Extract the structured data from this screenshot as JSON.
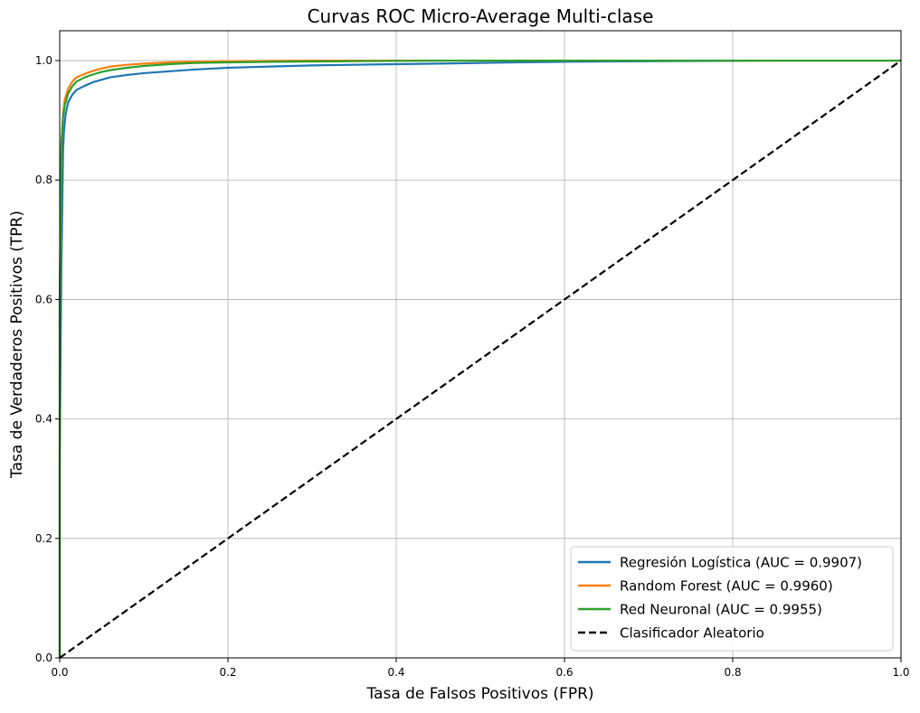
{
  "chart_data": {
    "type": "line",
    "title": "Curvas ROC Micro-Average Multi-clase",
    "xlabel": "Tasa de Falsos Positivos (FPR)",
    "ylabel": "Tasa de Verdaderos Positivos (TPR)",
    "xlim": [
      0,
      1
    ],
    "ylim": [
      0,
      1.05
    ],
    "xticks": [
      0.0,
      0.2,
      0.4,
      0.6,
      0.8,
      1.0
    ],
    "yticks": [
      0.0,
      0.2,
      0.4,
      0.6,
      0.8,
      1.0
    ],
    "xtick_labels": [
      "0.0",
      "0.2",
      "0.4",
      "0.6",
      "0.8",
      "1.0"
    ],
    "ytick_labels": [
      "0.0",
      "0.2",
      "0.4",
      "0.6",
      "0.8",
      "1.0"
    ],
    "grid": true,
    "legend_position": "lower-right",
    "series": [
      {
        "name": "Regresión Logística (AUC = 0.9907)",
        "color": "#1f77b4",
        "style": "solid",
        "x": [
          0.0,
          0.0,
          0.002,
          0.003,
          0.004,
          0.005,
          0.007,
          0.01,
          0.015,
          0.02,
          0.03,
          0.04,
          0.05,
          0.06,
          0.08,
          0.1,
          0.13,
          0.16,
          0.2,
          0.25,
          0.3,
          0.4,
          0.45,
          0.54,
          0.6,
          0.72,
          0.85,
          1.0
        ],
        "y": [
          0.0,
          0.33,
          0.66,
          0.75,
          0.85,
          0.88,
          0.91,
          0.93,
          0.943,
          0.951,
          0.958,
          0.964,
          0.968,
          0.972,
          0.976,
          0.979,
          0.982,
          0.985,
          0.988,
          0.99,
          0.992,
          0.994,
          0.995,
          0.997,
          0.998,
          0.999,
          1.0,
          1.0
        ]
      },
      {
        "name": "Random Forest (AUC = 0.9960)",
        "color": "#ff7f0e",
        "style": "solid",
        "x": [
          0.0,
          0.0,
          0.002,
          0.004,
          0.006,
          0.01,
          0.015,
          0.02,
          0.03,
          0.04,
          0.05,
          0.06,
          0.08,
          0.1,
          0.13,
          0.16,
          0.2,
          0.25,
          0.3,
          1.0
        ],
        "y": [
          0.0,
          0.6,
          0.86,
          0.91,
          0.935,
          0.953,
          0.965,
          0.972,
          0.978,
          0.983,
          0.987,
          0.99,
          0.993,
          0.995,
          0.997,
          0.998,
          0.999,
          0.9995,
          1.0,
          1.0
        ]
      },
      {
        "name": "Red Neuronal (AUC = 0.9955)",
        "color": "#2ca02c",
        "style": "solid",
        "x": [
          0.0,
          0.0,
          0.002,
          0.004,
          0.006,
          0.01,
          0.015,
          0.02,
          0.03,
          0.04,
          0.05,
          0.06,
          0.08,
          0.1,
          0.13,
          0.16,
          0.2,
          0.25,
          0.35,
          0.45,
          1.0
        ],
        "y": [
          0.0,
          0.6,
          0.86,
          0.905,
          0.925,
          0.945,
          0.957,
          0.965,
          0.972,
          0.977,
          0.981,
          0.984,
          0.988,
          0.991,
          0.994,
          0.996,
          0.997,
          0.998,
          0.999,
          1.0,
          1.0
        ]
      },
      {
        "name": "Clasificador Aleatorio",
        "color": "#000000",
        "style": "dashed",
        "x": [
          0.0,
          1.0
        ],
        "y": [
          0.0,
          1.0
        ]
      }
    ]
  }
}
